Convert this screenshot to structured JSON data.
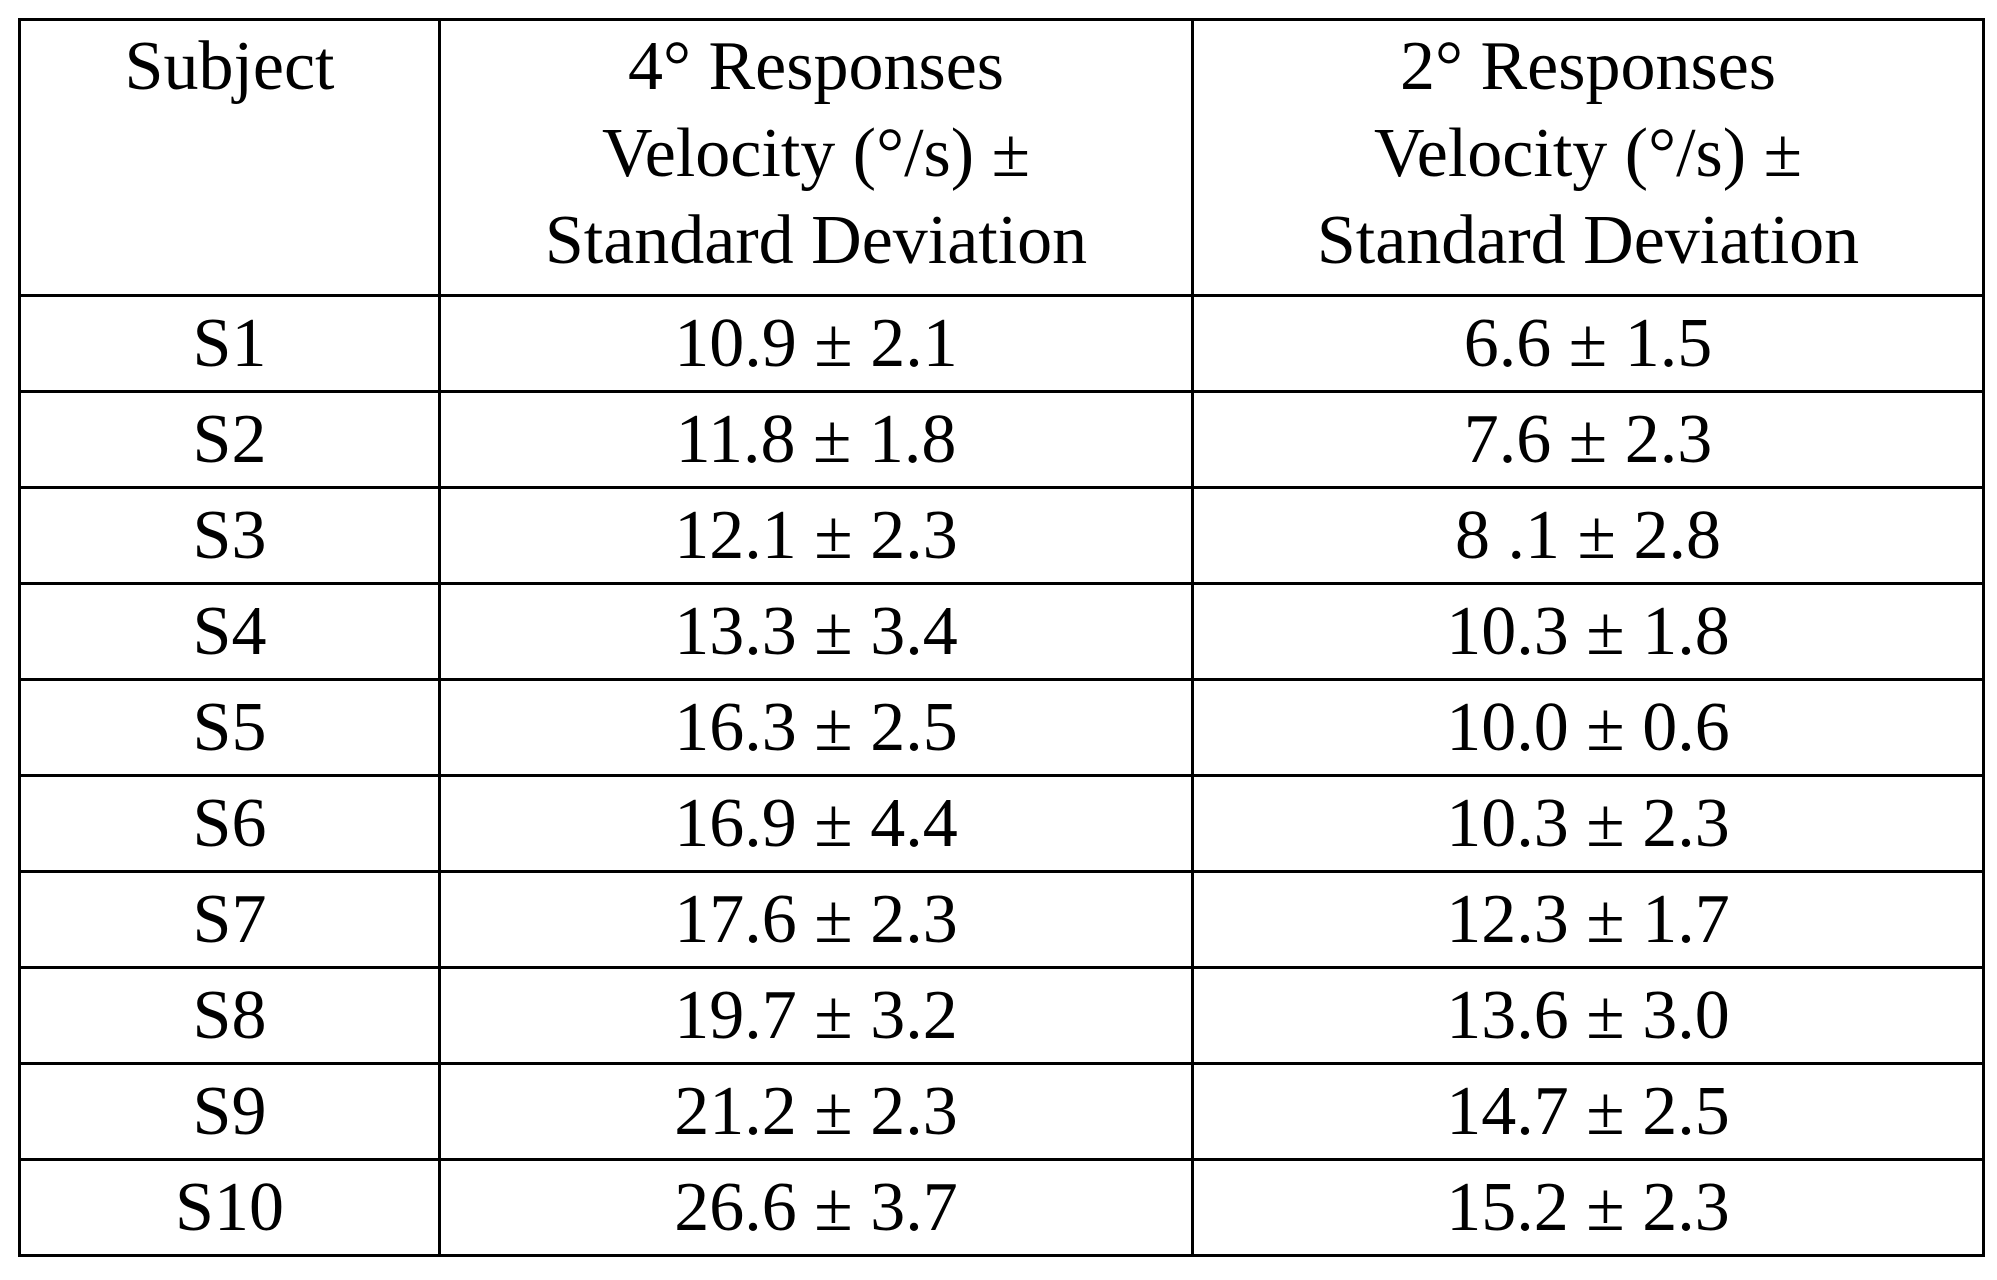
{
  "table": {
    "header": [
      [
        "Subject"
      ],
      [
        "4° Responses",
        "Velocity (°/s) ±",
        "Standard Deviation"
      ],
      [
        "2° Responses",
        "Velocity (°/s) ±",
        "Standard Deviation"
      ]
    ],
    "rows": [
      [
        "S1",
        "10.9 ± 2.1",
        "6.6 ± 1.5"
      ],
      [
        "S2",
        "11.8 ± 1.8",
        "7.6 ± 2.3"
      ],
      [
        "S3",
        "12.1 ± 2.3",
        "8 .1 ± 2.8"
      ],
      [
        "S4",
        "13.3 ± 3.4",
        "10.3 ± 1.8"
      ],
      [
        "S5",
        "16.3 ± 2.5",
        "10.0 ± 0.6"
      ],
      [
        "S6",
        "16.9 ± 4.4",
        "10.3 ± 2.3"
      ],
      [
        "S7",
        "17.6 ± 2.3",
        "12.3 ± 1.7"
      ],
      [
        "S8",
        "19.7 ± 3.2",
        "13.6 ± 3.0"
      ],
      [
        "S9",
        "21.2 ± 2.3",
        "14.7 ± 2.5"
      ],
      [
        "S10",
        "26.6 ± 3.7",
        "15.2 ± 2.3"
      ]
    ]
  }
}
